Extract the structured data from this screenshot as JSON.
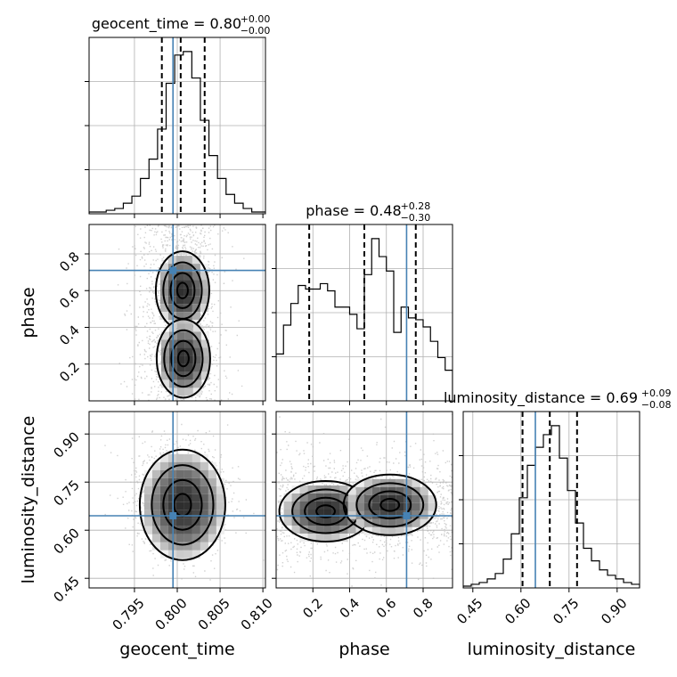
{
  "chart_data": {
    "type": "corner",
    "parameters": [
      "geocent_time",
      "phase",
      "luminosity_distance"
    ],
    "truths": {
      "geocent_time": 0.7995,
      "phase": 0.71,
      "luminosity_distance": 0.645
    },
    "grid": true,
    "axes": {
      "geocent_time": {
        "label": "geocent_time",
        "range": [
          0.7897,
          0.8103
        ],
        "ticks": [
          0.795,
          0.8,
          0.805,
          0.81
        ],
        "tick_labels": [
          "0.795",
          "0.800",
          "0.805",
          "0.810"
        ]
      },
      "phase": {
        "label": "phase",
        "range": [
          0.0,
          0.96
        ],
        "ticks": [
          0.2,
          0.4,
          0.6,
          0.8
        ],
        "tick_labels": [
          "0.2",
          "0.4",
          "0.6",
          "0.8"
        ]
      },
      "luminosity_distance": {
        "label": "luminosity_distance",
        "range": [
          0.42,
          0.97
        ],
        "ticks": [
          0.45,
          0.6,
          0.75,
          0.9
        ],
        "tick_labels": [
          "0.45",
          "0.60",
          "0.75",
          "0.90"
        ]
      }
    },
    "diagonal": [
      {
        "param": "geocent_time",
        "title_main": "geocent_time = 0.80",
        "title_sup": "+0.00",
        "title_sub": "−0.00",
        "quantiles": [
          0.7982,
          0.8004,
          0.8032
        ],
        "bins_start": 0.7897,
        "bin_width": 0.001,
        "counts": [
          1,
          1,
          2,
          3,
          6,
          10,
          20,
          31,
          48,
          74,
          90,
          92,
          77,
          53,
          33,
          20,
          11,
          6,
          3,
          1,
          1
        ]
      },
      {
        "param": "phase",
        "title_main": "phase = 0.48",
        "title_sup": "+0.28",
        "title_sub": "−0.30",
        "quantiles": [
          0.18,
          0.48,
          0.76
        ],
        "bins_start": 0.0,
        "bin_width": 0.04,
        "counts": [
          26,
          42,
          54,
          64,
          62,
          62,
          65,
          61,
          52,
          52,
          48,
          40,
          70,
          90,
          80,
          72,
          38,
          52,
          46,
          45,
          41,
          33,
          24,
          17
        ]
      },
      {
        "param": "luminosity_distance",
        "title_main": "luminosity_distance = 0.69",
        "title_sup": "+0.09",
        "title_sub": "−0.08",
        "quantiles": [
          0.605,
          0.69,
          0.775
        ],
        "bins_start": 0.42,
        "bin_width": 0.025,
        "counts": [
          1,
          2,
          3,
          5,
          8,
          16,
          30,
          50,
          68,
          78,
          85,
          90,
          72,
          54,
          36,
          22,
          15,
          10,
          7,
          5,
          3,
          2
        ]
      }
    ],
    "scatter_panels": [
      {
        "x": "geocent_time",
        "y": "phase",
        "mode": "bimodal_y",
        "centers": [
          [
            0.8002,
            0.62
          ],
          [
            0.8003,
            0.25
          ]
        ]
      },
      {
        "x": "geocent_time",
        "y": "luminosity_distance",
        "mode": "single",
        "centers": [
          [
            0.8002,
            0.69
          ]
        ]
      },
      {
        "x": "phase",
        "y": "luminosity_distance",
        "mode": "bimodal_x",
        "centers": [
          [
            0.25,
            0.67
          ],
          [
            0.6,
            0.69
          ]
        ]
      }
    ]
  }
}
